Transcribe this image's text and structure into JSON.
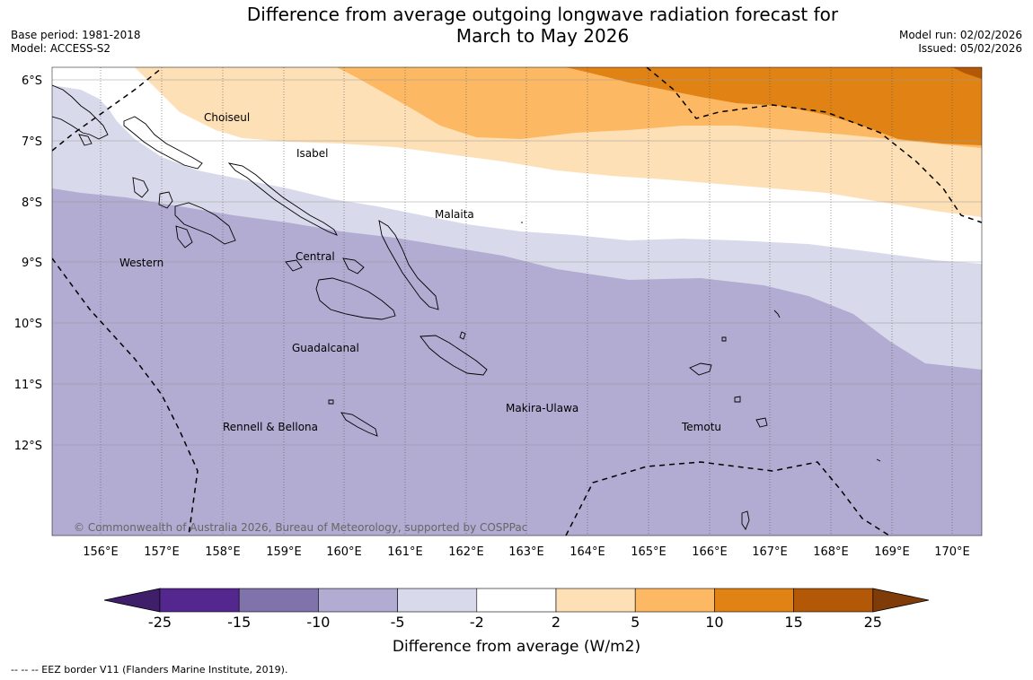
{
  "title_line1": "Difference from average outgoing longwave radiation forecast for",
  "title_line2": "March to May 2026",
  "base_period": "Base period: 1981-2018",
  "model": "Model: ACCESS-S2",
  "model_run": "Model run: 02/02/2026",
  "issued": "Issued: 05/02/2026",
  "copyright": "© Commonwealth of Australia 2026, Bureau of Meteorology, supported by COSPPac",
  "footer_note": "--  --  -- EEZ border V11 (Flanders Marine Institute, 2019).",
  "lat_labels": [
    "6°S",
    "7°S",
    "8°S",
    "9°S",
    "10°S",
    "11°S",
    "12°S"
  ],
  "lon_labels": [
    "156°E",
    "157°E",
    "158°E",
    "159°E",
    "160°E",
    "161°E",
    "162°E",
    "163°E",
    "164°E",
    "165°E",
    "166°E",
    "167°E",
    "168°E",
    "169°E",
    "170°E"
  ],
  "provinces": [
    "Choiseul",
    "Isabel",
    "Malaita",
    "Western",
    "Central",
    "Guadalcanal",
    "Makira-Ulawa",
    "Rennell & Bellona",
    "Temotu"
  ],
  "colorbar": {
    "label": "Difference from average (W/m2)",
    "ticks": [
      "-25",
      "-15",
      "-10",
      "-5",
      "-2",
      "2",
      "5",
      "10",
      "15",
      "25"
    ],
    "colors": [
      "#3f1f69",
      "#54278f",
      "#8073ac",
      "#b2abd2",
      "#d8daeb",
      "#ffffff",
      "#fee0b6",
      "#fdb863",
      "#e08214",
      "#b35806",
      "#7f3b08"
    ]
  }
}
